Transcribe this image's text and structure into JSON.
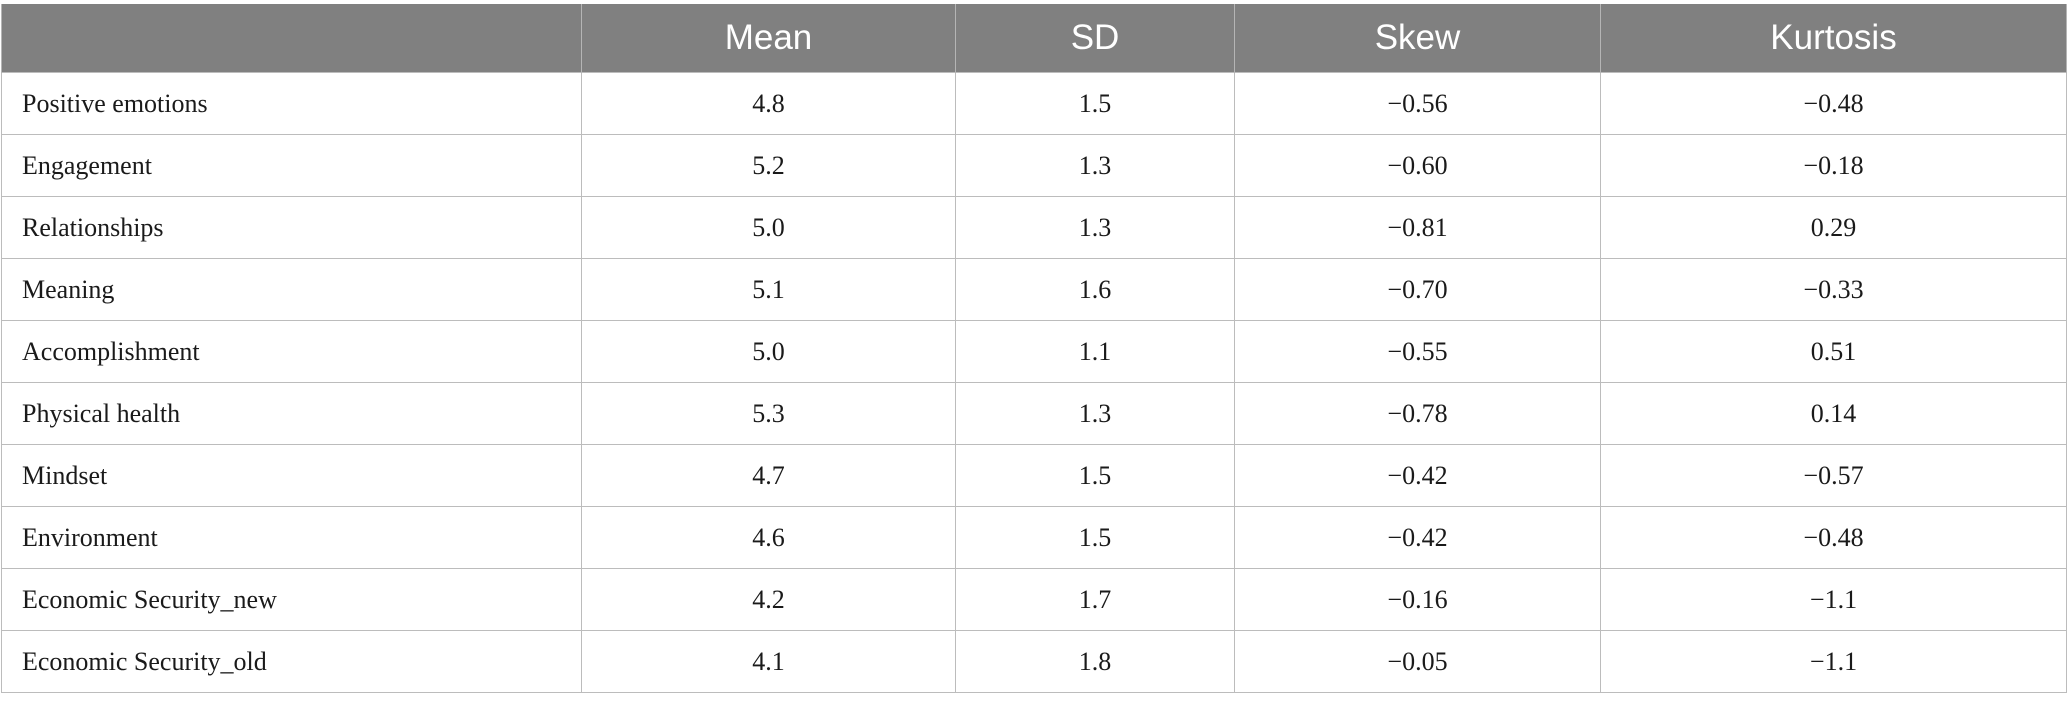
{
  "table": {
    "columns": [
      "",
      "Mean",
      "SD",
      "Skew",
      "Kurtosis"
    ],
    "rows": [
      {
        "label": "Positive emotions",
        "mean": "4.8",
        "sd": "1.5",
        "skew": "−0.56",
        "kurtosis": "−0.48"
      },
      {
        "label": "Engagement",
        "mean": "5.2",
        "sd": "1.3",
        "skew": "−0.60",
        "kurtosis": "−0.18"
      },
      {
        "label": "Relationships",
        "mean": "5.0",
        "sd": "1.3",
        "skew": "−0.81",
        "kurtosis": "0.29"
      },
      {
        "label": "Meaning",
        "mean": "5.1",
        "sd": "1.6",
        "skew": "−0.70",
        "kurtosis": "−0.33"
      },
      {
        "label": "Accomplishment",
        "mean": "5.0",
        "sd": "1.1",
        "skew": "−0.55",
        "kurtosis": "0.51"
      },
      {
        "label": "Physical health",
        "mean": "5.3",
        "sd": "1.3",
        "skew": "−0.78",
        "kurtosis": "0.14"
      },
      {
        "label": "Mindset",
        "mean": "4.7",
        "sd": "1.5",
        "skew": "−0.42",
        "kurtosis": "−0.57"
      },
      {
        "label": "Environment",
        "mean": "4.6",
        "sd": "1.5",
        "skew": "−0.42",
        "kurtosis": "−0.48"
      },
      {
        "label": "Economic Security_new",
        "mean": "4.2",
        "sd": "1.7",
        "skew": "−0.16",
        "kurtosis": "−1.1"
      },
      {
        "label": "Economic Security_old",
        "mean": "4.1",
        "sd": "1.8",
        "skew": "−0.05",
        "kurtosis": "−1.1"
      }
    ]
  },
  "colors": {
    "header_bg": "#808080",
    "header_text": "#ffffff",
    "grid": "#bcbcbc"
  }
}
